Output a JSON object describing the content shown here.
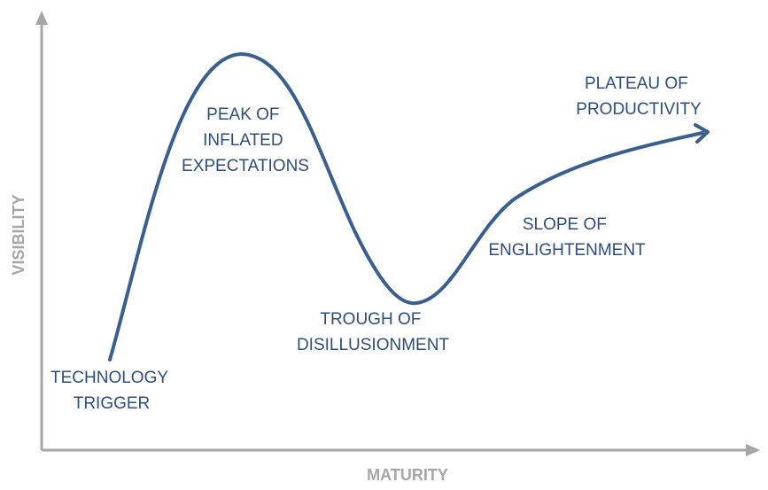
{
  "axes": {
    "x_label": "MATURITY",
    "y_label": "VISIBILITY"
  },
  "phases": [
    {
      "lines": [
        "TECHNOLOGY",
        "TRIGGER"
      ]
    },
    {
      "lines": [
        "PEAK OF",
        "INFLATED",
        "EXPECTATIONS"
      ]
    },
    {
      "lines": [
        "TROUGH OF",
        "DISILLUSIONMENT"
      ]
    },
    {
      "lines": [
        "SLOPE OF",
        "ENGLIGHTENMENT"
      ]
    },
    {
      "lines": [
        "PLATEAU OF",
        "PRODUCTIVITY"
      ]
    }
  ],
  "colors": {
    "axis": "#a6a6a6",
    "curve": "#3a5f8f",
    "label": "#2e4d7b"
  }
}
